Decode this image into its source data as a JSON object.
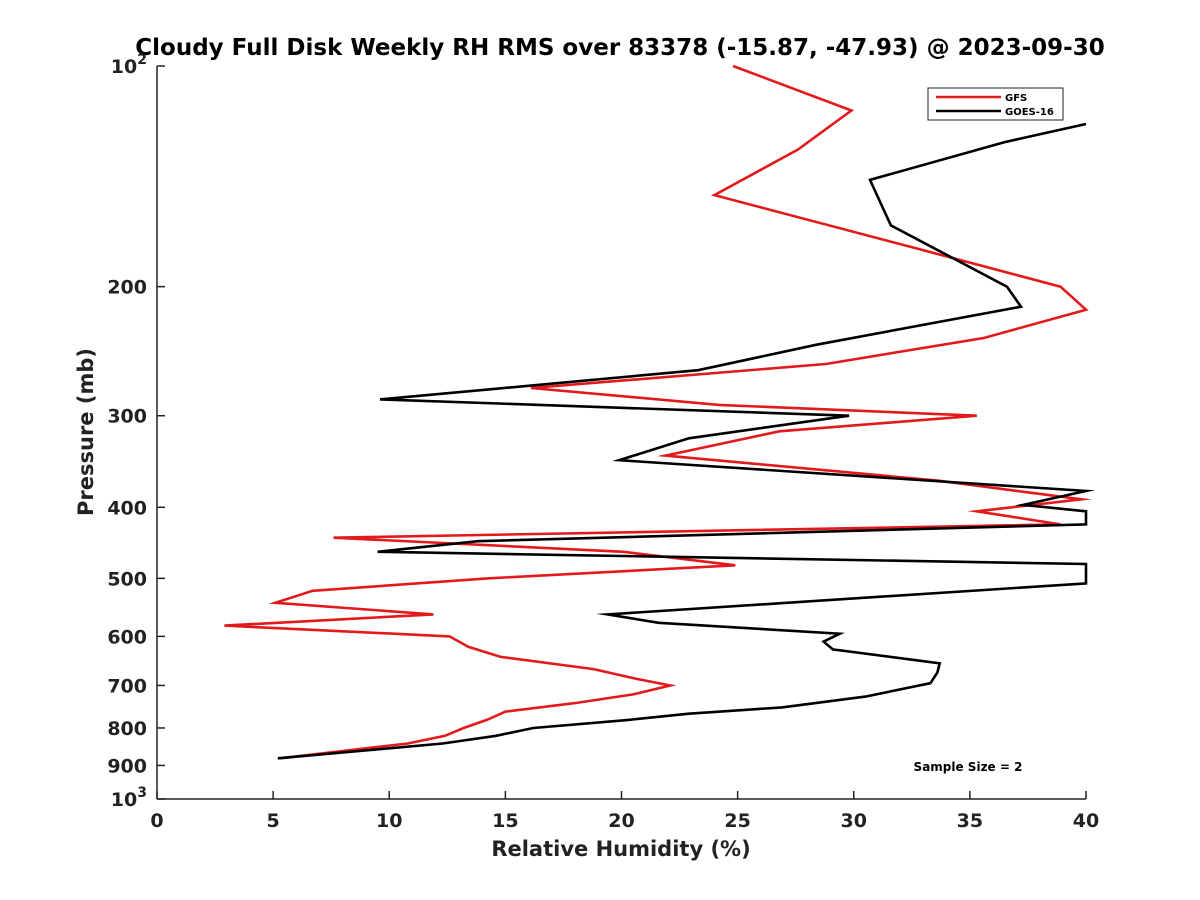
{
  "chart_data": {
    "type": "line",
    "title": "Cloudy Full Disk Weekly RH RMS over 83378 (-15.87, -47.93) @ 2023-09-30",
    "xlabel": "Relative Humidity (%)",
    "ylabel": "Pressure (mb)",
    "xlim": [
      0,
      40
    ],
    "ylim": [
      100,
      1000
    ],
    "y_scale": "log",
    "y_reversed": true,
    "grid": false,
    "legend_placement": "top-right",
    "x_ticks": [
      "0",
      "5",
      "10",
      "15",
      "20",
      "25",
      "30",
      "35",
      "40"
    ],
    "y_ticks": [
      {
        "value": 100,
        "base": "10",
        "exp": "2"
      },
      {
        "value": 200,
        "label": "200"
      },
      {
        "value": 300,
        "label": "300"
      },
      {
        "value": 400,
        "label": "400"
      },
      {
        "value": 500,
        "label": "500"
      },
      {
        "value": 600,
        "label": "600"
      },
      {
        "value": 700,
        "label": "700"
      },
      {
        "value": 800,
        "label": "800"
      },
      {
        "value": 900,
        "label": "900"
      },
      {
        "value": 1000,
        "base": "10",
        "exp": "3"
      }
    ],
    "annotation": "Sample Size = 2",
    "series": [
      {
        "name": "GFS",
        "color": "#e31a1c",
        "points": [
          [
            24.8,
            100
          ],
          [
            29.9,
            115
          ],
          [
            27.6,
            130
          ],
          [
            24.0,
            150
          ],
          [
            32.6,
            177
          ],
          [
            38.9,
            200
          ],
          [
            40.0,
            215
          ],
          [
            35.6,
            235
          ],
          [
            28.8,
            255
          ],
          [
            16.1,
            275
          ],
          [
            24.2,
            290
          ],
          [
            35.3,
            300
          ],
          [
            26.8,
            315
          ],
          [
            21.9,
            340
          ],
          [
            33.7,
            368
          ],
          [
            39.8,
            390
          ],
          [
            35.3,
            405
          ],
          [
            38.9,
            422
          ],
          [
            7.6,
            440
          ],
          [
            20.1,
            460
          ],
          [
            24.9,
            480
          ],
          [
            14.3,
            500
          ],
          [
            6.7,
            520
          ],
          [
            5.1,
            540
          ],
          [
            11.9,
            560
          ],
          [
            2.9,
            580
          ],
          [
            12.6,
            600
          ],
          [
            13.4,
            620
          ],
          [
            14.8,
            640
          ],
          [
            18.8,
            665
          ],
          [
            20.6,
            685
          ],
          [
            22.1,
            700
          ],
          [
            20.5,
            720
          ],
          [
            18.0,
            740
          ],
          [
            15.0,
            760
          ],
          [
            14.2,
            780
          ],
          [
            13.2,
            800
          ],
          [
            12.4,
            820
          ],
          [
            10.8,
            840
          ],
          [
            5.3,
            880
          ]
        ]
      },
      {
        "name": "GOES-16",
        "color": "#000000",
        "points": [
          [
            40.0,
            120
          ],
          [
            36.5,
            127
          ],
          [
            30.7,
            143
          ],
          [
            31.6,
            165
          ],
          [
            36.6,
            200
          ],
          [
            37.2,
            213
          ],
          [
            28.4,
            240
          ],
          [
            23.3,
            260
          ],
          [
            9.6,
            285
          ],
          [
            29.8,
            300
          ],
          [
            22.9,
            322
          ],
          [
            19.9,
            345
          ],
          [
            40.0,
            380
          ],
          [
            37.3,
            397
          ],
          [
            40.0,
            405
          ],
          [
            40.0,
            422
          ],
          [
            13.8,
            445
          ],
          [
            9.5,
            460
          ],
          [
            40.0,
            478
          ],
          [
            40.0,
            508
          ],
          [
            19.4,
            560
          ],
          [
            21.6,
            575
          ],
          [
            29.4,
            595
          ],
          [
            28.7,
            610
          ],
          [
            29.1,
            625
          ],
          [
            33.7,
            653
          ],
          [
            33.6,
            672
          ],
          [
            33.3,
            695
          ],
          [
            30.5,
            725
          ],
          [
            26.9,
            750
          ],
          [
            22.9,
            765
          ],
          [
            20.3,
            780
          ],
          [
            16.2,
            800
          ],
          [
            14.6,
            820
          ],
          [
            12.3,
            840
          ],
          [
            5.2,
            880
          ]
        ]
      }
    ]
  }
}
